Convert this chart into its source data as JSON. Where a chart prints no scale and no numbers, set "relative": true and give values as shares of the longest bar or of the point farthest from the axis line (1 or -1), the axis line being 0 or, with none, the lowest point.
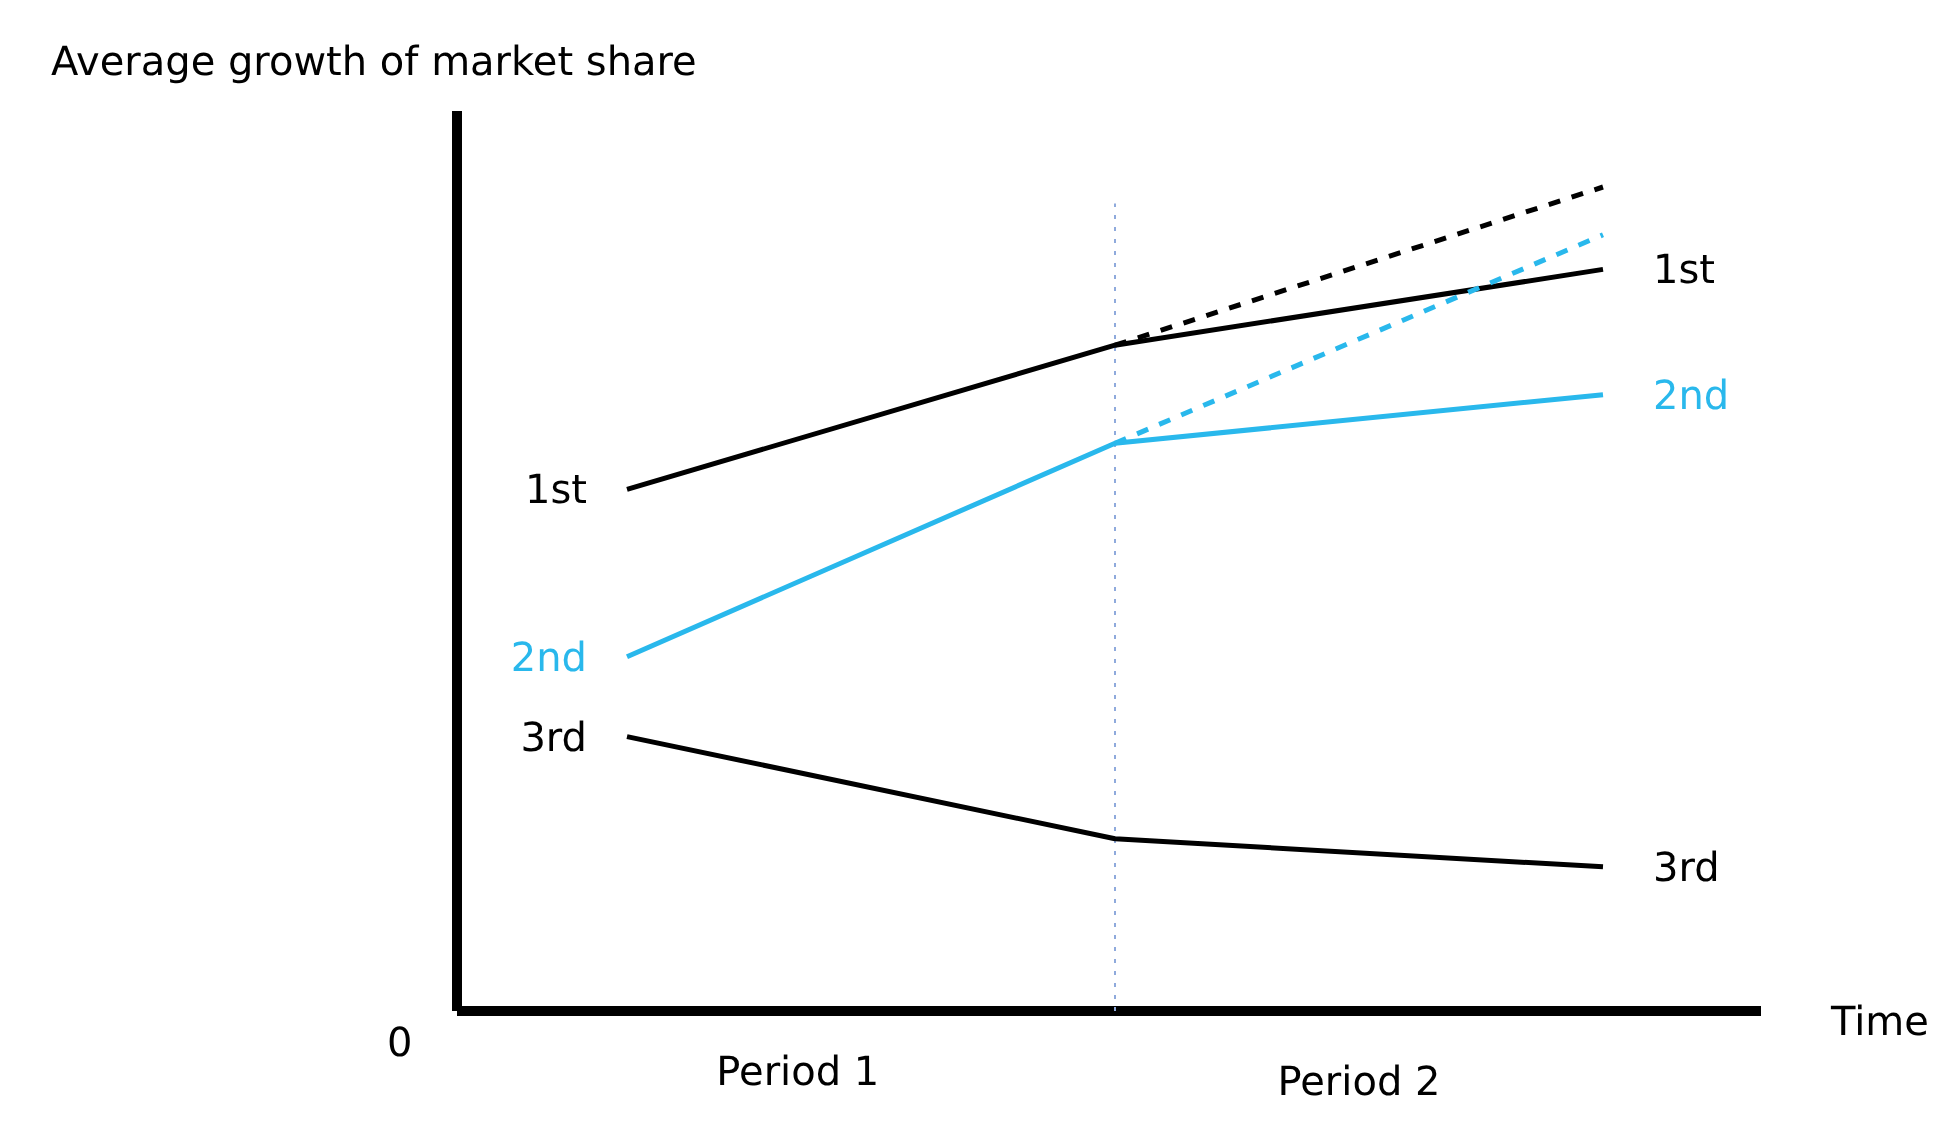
{
  "chart_data": {
    "type": "line",
    "relative": true,
    "ylabel": "Average growth of market share",
    "xlabel": "Time",
    "categories": [
      null,
      null,
      null
    ],
    "annotations": [
      "0",
      "Period 1",
      "Period 2"
    ],
    "marker": "none",
    "series": [
      {
        "name": "1st",
        "color": "#000000",
        "values": [
          0.633,
          0.808,
          0.9
        ]
      },
      {
        "name": "2nd",
        "color": "#29b8ec",
        "values": [
          0.43,
          0.689,
          0.748
        ]
      },
      {
        "name": "3rd",
        "color": "#000000",
        "values": [
          0.333,
          0.209,
          0.175
        ]
      },
      {
        "color": "#000000",
        "line_style": "dashed",
        "values": [
          null,
          0.808,
          1.0
        ]
      },
      {
        "color": "#29b8ec",
        "line_style": "dashed",
        "values": [
          null,
          0.689,
          0.942
        ]
      }
    ]
  }
}
